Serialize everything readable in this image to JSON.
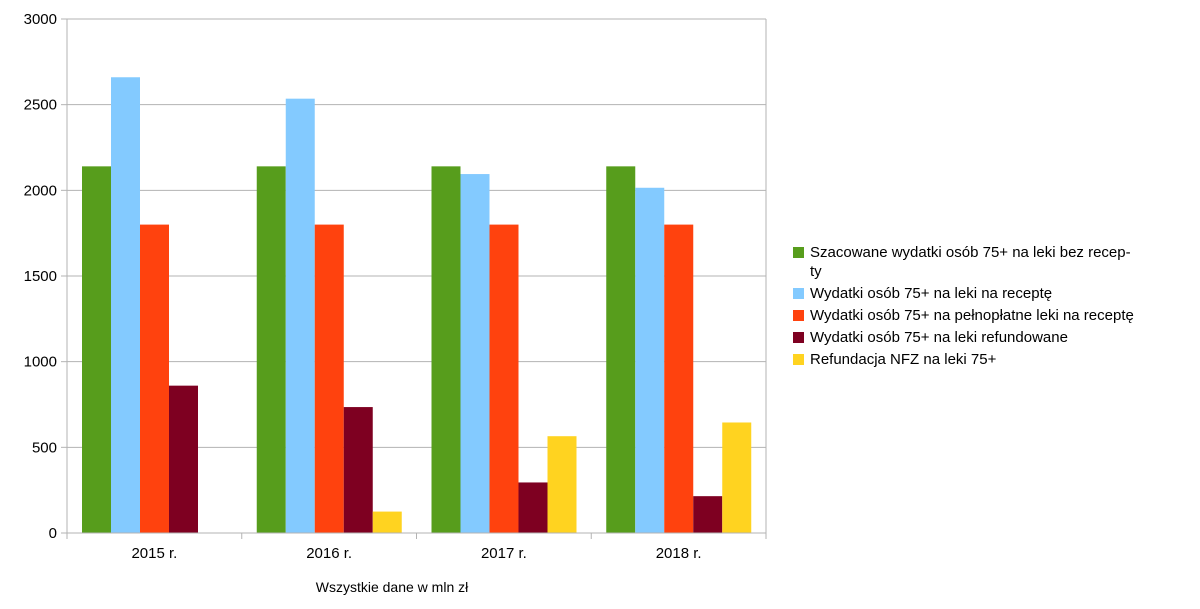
{
  "chart_data": {
    "type": "bar",
    "categories": [
      "2015 r.",
      "2016 r.",
      "2017 r.",
      "2018  r."
    ],
    "series": [
      {
        "name": "Szacowane wydatki osób 75+ na leki bez recep-ty",
        "label_lines": [
          "Szacowane wydatki osób 75+ na leki bez recep-",
          "ty"
        ],
        "color": "#579d1c",
        "values": [
          2140,
          2140,
          2140,
          2140
        ]
      },
      {
        "name": "Wydatki osób 75+ na leki na receptę",
        "label_lines": [
          "Wydatki osób 75+ na leki na receptę"
        ],
        "color": "#83caff",
        "values": [
          2660,
          2535,
          2095,
          2015
        ]
      },
      {
        "name": "Wydatki osób 75+ na pełnopłatne leki na receptę",
        "label_lines": [
          "Wydatki osób 75+ na pełnopłatne leki na receptę"
        ],
        "color": "#ff420e",
        "values": [
          1800,
          1800,
          1800,
          1800
        ]
      },
      {
        "name": "Wydatki osób 75+ na leki refundowane",
        "label_lines": [
          "Wydatki osób 75+ na leki refundowane"
        ],
        "color": "#7e0021",
        "values": [
          860,
          735,
          295,
          215
        ]
      },
      {
        "name": "Refundacja NFZ na leki 75+",
        "label_lines": [
          "Refundacja NFZ na leki 75+"
        ],
        "color": "#ffd320",
        "values": [
          0,
          125,
          565,
          645
        ]
      }
    ],
    "ylim": [
      0,
      3000
    ],
    "yticks": [
      "0",
      "500",
      "1000",
      "1500",
      "2000",
      "2500",
      "3000"
    ],
    "grid": true,
    "legend_position": "right",
    "note": "Wszystkie dane w mln zł"
  }
}
